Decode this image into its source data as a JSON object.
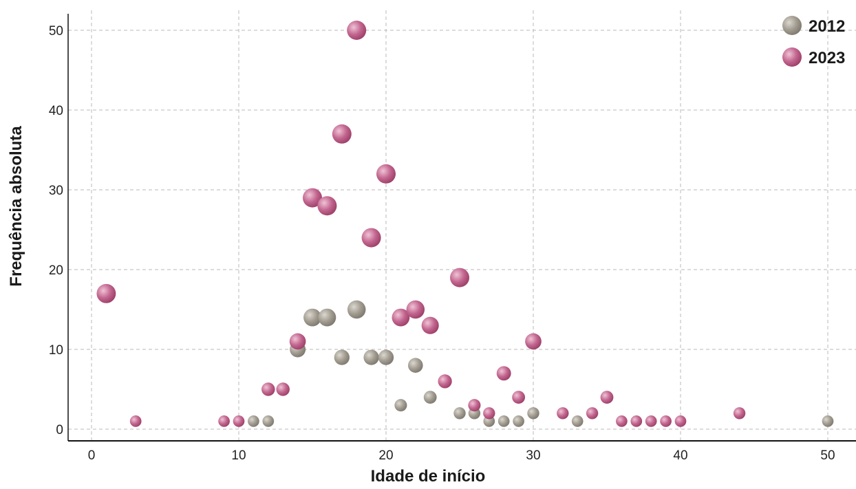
{
  "chart_data": {
    "type": "scatter",
    "xlabel": "Idade de início",
    "ylabel": "Frequência absoluta",
    "xlim": [
      -1.5,
      51.5
    ],
    "ylim": [
      -1.5,
      52
    ],
    "xticks": [
      0,
      10,
      20,
      30,
      40,
      50
    ],
    "yticks": [
      0,
      10,
      20,
      30,
      40,
      50
    ],
    "grid": true,
    "legend_position": "top-right",
    "series": [
      {
        "name": "2012",
        "color": "#a29c91",
        "color_light": "#dcd8d0",
        "color_dark": "#7d786e",
        "points": [
          {
            "x": 11,
            "y": 1
          },
          {
            "x": 12,
            "y": 1
          },
          {
            "x": 14,
            "y": 10
          },
          {
            "x": 15,
            "y": 14
          },
          {
            "x": 16,
            "y": 14
          },
          {
            "x": 17,
            "y": 9
          },
          {
            "x": 18,
            "y": 15
          },
          {
            "x": 19,
            "y": 9
          },
          {
            "x": 20,
            "y": 9
          },
          {
            "x": 21,
            "y": 3
          },
          {
            "x": 22,
            "y": 8
          },
          {
            "x": 23,
            "y": 4
          },
          {
            "x": 25,
            "y": 2
          },
          {
            "x": 26,
            "y": 2
          },
          {
            "x": 27,
            "y": 1
          },
          {
            "x": 28,
            "y": 1
          },
          {
            "x": 29,
            "y": 1
          },
          {
            "x": 30,
            "y": 2
          },
          {
            "x": 33,
            "y": 1
          },
          {
            "x": 50,
            "y": 1
          }
        ]
      },
      {
        "name": "2023",
        "color": "#c2668f",
        "color_light": "#f0c3d6",
        "color_dark": "#9c3f68",
        "points": [
          {
            "x": 1,
            "y": 17
          },
          {
            "x": 3,
            "y": 1
          },
          {
            "x": 9,
            "y": 1
          },
          {
            "x": 10,
            "y": 1
          },
          {
            "x": 12,
            "y": 5
          },
          {
            "x": 13,
            "y": 5
          },
          {
            "x": 14,
            "y": 11
          },
          {
            "x": 15,
            "y": 29
          },
          {
            "x": 16,
            "y": 28
          },
          {
            "x": 17,
            "y": 37
          },
          {
            "x": 18,
            "y": 50
          },
          {
            "x": 19,
            "y": 24
          },
          {
            "x": 20,
            "y": 32
          },
          {
            "x": 21,
            "y": 14
          },
          {
            "x": 22,
            "y": 15
          },
          {
            "x": 23,
            "y": 13
          },
          {
            "x": 24,
            "y": 6
          },
          {
            "x": 25,
            "y": 19
          },
          {
            "x": 26,
            "y": 3
          },
          {
            "x": 27,
            "y": 2
          },
          {
            "x": 28,
            "y": 7
          },
          {
            "x": 29,
            "y": 4
          },
          {
            "x": 30,
            "y": 11
          },
          {
            "x": 32,
            "y": 2
          },
          {
            "x": 34,
            "y": 2
          },
          {
            "x": 35,
            "y": 4
          },
          {
            "x": 36,
            "y": 1
          },
          {
            "x": 37,
            "y": 1
          },
          {
            "x": 38,
            "y": 1
          },
          {
            "x": 39,
            "y": 1
          },
          {
            "x": 40,
            "y": 1
          },
          {
            "x": 44,
            "y": 2
          }
        ]
      }
    ]
  }
}
